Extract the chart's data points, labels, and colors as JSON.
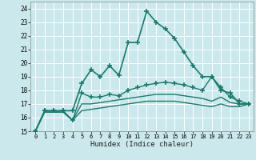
{
  "xlabel": "Humidex (Indice chaleur)",
  "xlim": [
    -0.5,
    23.5
  ],
  "ylim": [
    15,
    24.5
  ],
  "yticks": [
    15,
    16,
    17,
    18,
    19,
    20,
    21,
    22,
    23,
    24
  ],
  "xticks": [
    0,
    1,
    2,
    3,
    4,
    5,
    6,
    7,
    8,
    9,
    10,
    11,
    12,
    13,
    14,
    15,
    16,
    17,
    18,
    19,
    20,
    21,
    22,
    23
  ],
  "bg_color": "#cbe8ec",
  "line_color": "#1a7a6e",
  "grid_color": "#ffffff",
  "lines": [
    {
      "x": [
        0,
        1,
        2,
        3,
        4,
        5,
        6,
        7,
        8,
        9,
        10,
        11,
        12,
        13,
        14,
        15,
        16,
        17,
        18,
        19,
        20,
        21,
        22,
        23
      ],
      "y": [
        15.0,
        16.5,
        16.5,
        16.5,
        16.5,
        18.5,
        19.5,
        19.0,
        19.8,
        19.1,
        21.5,
        21.5,
        23.8,
        23.0,
        22.5,
        21.8,
        20.8,
        19.8,
        19.0,
        19.0,
        18.0,
        17.8,
        17.0,
        17.0
      ],
      "marker": "+",
      "markersize": 4,
      "linewidth": 1.2
    },
    {
      "x": [
        0,
        1,
        2,
        3,
        4,
        5,
        6,
        7,
        8,
        9,
        10,
        11,
        12,
        13,
        14,
        15,
        16,
        17,
        18,
        19,
        20,
        21,
        22,
        23
      ],
      "y": [
        15.0,
        16.5,
        16.5,
        16.5,
        15.8,
        17.8,
        17.5,
        17.5,
        17.7,
        17.6,
        18.0,
        18.2,
        18.4,
        18.5,
        18.6,
        18.5,
        18.4,
        18.2,
        18.0,
        19.0,
        18.2,
        17.5,
        17.2,
        17.0
      ],
      "marker": "+",
      "markersize": 4,
      "linewidth": 1.0
    },
    {
      "x": [
        0,
        1,
        2,
        3,
        4,
        5,
        6,
        7,
        8,
        9,
        10,
        11,
        12,
        13,
        14,
        15,
        16,
        17,
        18,
        19,
        20,
        21,
        22,
        23
      ],
      "y": [
        15.0,
        16.4,
        16.4,
        16.4,
        15.8,
        17.0,
        17.0,
        17.1,
        17.2,
        17.3,
        17.4,
        17.5,
        17.6,
        17.7,
        17.7,
        17.7,
        17.6,
        17.5,
        17.4,
        17.2,
        17.5,
        17.1,
        17.0,
        17.0
      ],
      "marker": null,
      "markersize": 0,
      "linewidth": 1.0
    },
    {
      "x": [
        0,
        1,
        2,
        3,
        4,
        5,
        6,
        7,
        8,
        9,
        10,
        11,
        12,
        13,
        14,
        15,
        16,
        17,
        18,
        19,
        20,
        21,
        22,
        23
      ],
      "y": [
        15.0,
        16.4,
        16.4,
        16.4,
        15.8,
        16.5,
        16.6,
        16.7,
        16.8,
        16.9,
        17.0,
        17.1,
        17.2,
        17.2,
        17.2,
        17.2,
        17.1,
        17.0,
        16.9,
        16.8,
        17.0,
        16.8,
        16.8,
        17.0
      ],
      "marker": null,
      "markersize": 0,
      "linewidth": 1.0
    }
  ]
}
